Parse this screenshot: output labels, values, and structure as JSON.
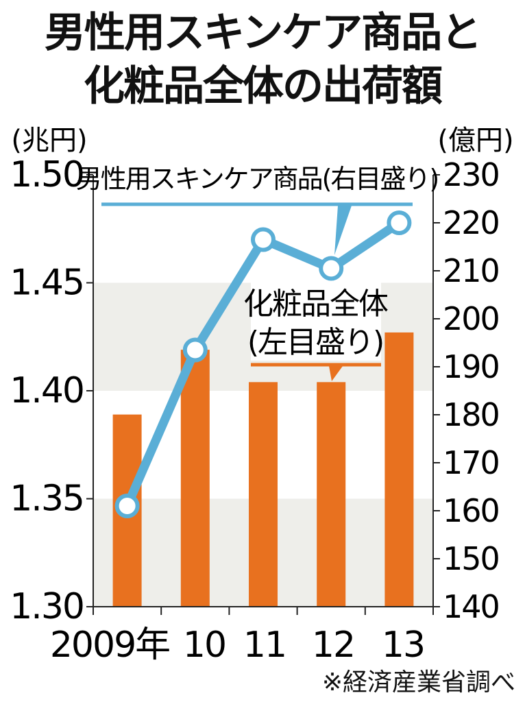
{
  "title": {
    "line1": "男性用スキンケア商品と",
    "line2": "化粧品全体の出荷額"
  },
  "source": "※経済産業省調べ",
  "colors": {
    "bar": "#e8711f",
    "line": "#5aaed6",
    "band": "#eeeeea",
    "axis": "#222222"
  },
  "chart_data": {
    "type": "bar+line",
    "categories": [
      "2009年",
      "10",
      "11",
      "12",
      "13"
    ],
    "left_axis": {
      "unit": "(兆円)",
      "ticks": [
        "1.50",
        "1.45",
        "1.40",
        "1.35",
        "1.30"
      ],
      "ylim": [
        1.3,
        1.5
      ]
    },
    "right_axis": {
      "unit": "(億円)",
      "ticks": [
        "230",
        "220",
        "210",
        "200",
        "190",
        "180",
        "170",
        "160",
        "150",
        "140"
      ],
      "ylim": [
        140,
        230
      ]
    },
    "bar_series": {
      "label": [
        "化粧品全体",
        "(左目盛り)"
      ],
      "axis": "left",
      "values": [
        1.389,
        1.419,
        1.404,
        1.404,
        1.427
      ]
    },
    "line_series": {
      "label": "男性用スキンケア商品(右目盛り)",
      "axis": "right",
      "values": [
        161,
        193.5,
        216.5,
        210.5,
        220
      ]
    }
  }
}
